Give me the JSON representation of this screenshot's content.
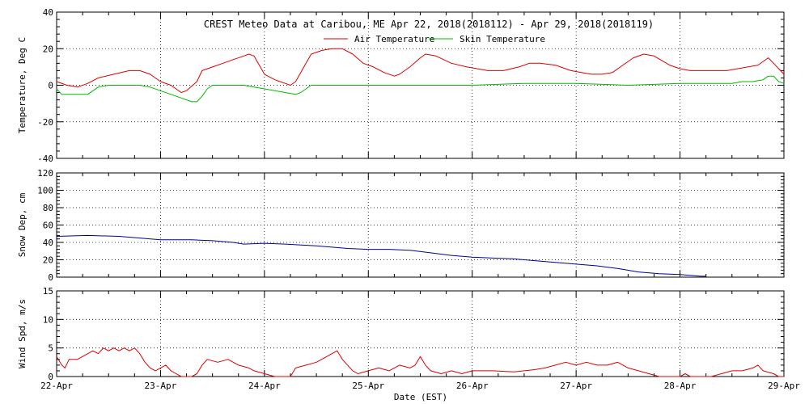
{
  "chart_data": {
    "title": "CREST Meteo Data at Caribou, ME   Apr 22, 2018(2018112) - Apr 29, 2018(2018119)",
    "xlabel": "Date (EST)",
    "x_ticks": [
      "22-Apr",
      "23-Apr",
      "24-Apr",
      "25-Apr",
      "26-Apr",
      "27-Apr",
      "28-Apr",
      "29-Apr"
    ],
    "x_range_days": [
      0,
      7
    ],
    "colors": {
      "red": "#dd0000",
      "green": "#00bb00",
      "blue": "#000099"
    },
    "panels": [
      {
        "type": "line",
        "ylabel": "Temperature, Deg C",
        "ylim": [
          -40,
          40
        ],
        "yticks": [
          -40,
          -20,
          0,
          20,
          40
        ],
        "grid": true,
        "legend_position": "top-center",
        "series": [
          {
            "name": "Air Temperature",
            "color": "red",
            "points": [
              [
                0,
                2
              ],
              [
                0.1,
                0
              ],
              [
                0.2,
                -1
              ],
              [
                0.3,
                1
              ],
              [
                0.4,
                4
              ],
              [
                0.55,
                6
              ],
              [
                0.7,
                8
              ],
              [
                0.8,
                8
              ],
              [
                0.9,
                6
              ],
              [
                1.0,
                2
              ],
              [
                1.1,
                0
              ],
              [
                1.2,
                -4
              ],
              [
                1.25,
                -3
              ],
              [
                1.35,
                2
              ],
              [
                1.4,
                8
              ],
              [
                1.5,
                10
              ],
              [
                1.6,
                12
              ],
              [
                1.7,
                14
              ],
              [
                1.8,
                16
              ],
              [
                1.85,
                17
              ],
              [
                1.9,
                16
              ],
              [
                2.0,
                6
              ],
              [
                2.1,
                3
              ],
              [
                2.15,
                2
              ],
              [
                2.2,
                1
              ],
              [
                2.25,
                0
              ],
              [
                2.3,
                2
              ],
              [
                2.35,
                7
              ],
              [
                2.4,
                12
              ],
              [
                2.45,
                17
              ],
              [
                2.55,
                19
              ],
              [
                2.65,
                20
              ],
              [
                2.75,
                20
              ],
              [
                2.85,
                17
              ],
              [
                2.95,
                12
              ],
              [
                3.05,
                10
              ],
              [
                3.15,
                7
              ],
              [
                3.25,
                5
              ],
              [
                3.3,
                6
              ],
              [
                3.4,
                10
              ],
              [
                3.5,
                15
              ],
              [
                3.55,
                17
              ],
              [
                3.65,
                16
              ],
              [
                3.8,
                12
              ],
              [
                3.95,
                10
              ],
              [
                4.05,
                9
              ],
              [
                4.15,
                8
              ],
              [
                4.3,
                8
              ],
              [
                4.45,
                10
              ],
              [
                4.55,
                12
              ],
              [
                4.65,
                12
              ],
              [
                4.8,
                11
              ],
              [
                4.95,
                8
              ],
              [
                5.05,
                7
              ],
              [
                5.15,
                6
              ],
              [
                5.25,
                6
              ],
              [
                5.35,
                7
              ],
              [
                5.45,
                11
              ],
              [
                5.55,
                15
              ],
              [
                5.65,
                17
              ],
              [
                5.75,
                16
              ],
              [
                5.9,
                11
              ],
              [
                6.0,
                9
              ],
              [
                6.1,
                8
              ],
              [
                6.2,
                8
              ],
              [
                6.35,
                8
              ],
              [
                6.45,
                8
              ],
              [
                6.55,
                9
              ],
              [
                6.65,
                10
              ],
              [
                6.75,
                11
              ],
              [
                6.8,
                13
              ],
              [
                6.85,
                15
              ],
              [
                6.9,
                12
              ],
              [
                6.95,
                9
              ],
              [
                7.0,
                6
              ]
            ]
          },
          {
            "name": "Skin Temperature",
            "color": "green",
            "points": [
              [
                0,
                -2
              ],
              [
                0.05,
                -5
              ],
              [
                0.2,
                -5
              ],
              [
                0.3,
                -5
              ],
              [
                0.35,
                -3
              ],
              [
                0.4,
                -1
              ],
              [
                0.5,
                0
              ],
              [
                0.6,
                0
              ],
              [
                0.7,
                0
              ],
              [
                0.8,
                0
              ],
              [
                0.9,
                -1
              ],
              [
                1.0,
                -3
              ],
              [
                1.1,
                -5
              ],
              [
                1.2,
                -7
              ],
              [
                1.3,
                -9
              ],
              [
                1.35,
                -9
              ],
              [
                1.4,
                -6
              ],
              [
                1.45,
                -2
              ],
              [
                1.5,
                0
              ],
              [
                1.6,
                0
              ],
              [
                1.7,
                0
              ],
              [
                1.8,
                0
              ],
              [
                1.9,
                -1
              ],
              [
                2.0,
                -2
              ],
              [
                2.1,
                -3
              ],
              [
                2.2,
                -4
              ],
              [
                2.3,
                -5
              ],
              [
                2.35,
                -4
              ],
              [
                2.4,
                -2
              ],
              [
                2.45,
                0
              ],
              [
                3.0,
                0
              ],
              [
                4.0,
                0
              ],
              [
                4.5,
                1
              ],
              [
                5.0,
                1
              ],
              [
                5.5,
                0
              ],
              [
                6.0,
                1
              ],
              [
                6.5,
                1
              ],
              [
                6.6,
                2
              ],
              [
                6.7,
                2
              ],
              [
                6.8,
                3
              ],
              [
                6.85,
                5
              ],
              [
                6.9,
                5
              ],
              [
                6.95,
                2
              ],
              [
                7.0,
                1
              ]
            ]
          }
        ]
      },
      {
        "type": "line",
        "ylabel": "Snow Dep, cm",
        "ylim": [
          0,
          120
        ],
        "yticks": [
          0,
          20,
          40,
          60,
          80,
          100,
          120
        ],
        "grid": true,
        "series": [
          {
            "name": "",
            "color": "blue",
            "points": [
              [
                0,
                47
              ],
              [
                0.3,
                48
              ],
              [
                0.6,
                47
              ],
              [
                0.8,
                45
              ],
              [
                1.0,
                43
              ],
              [
                1.3,
                43
              ],
              [
                1.5,
                42
              ],
              [
                1.7,
                40
              ],
              [
                1.8,
                38
              ],
              [
                2.0,
                39
              ],
              [
                2.2,
                38
              ],
              [
                2.5,
                36
              ],
              [
                2.8,
                33
              ],
              [
                3.0,
                32
              ],
              [
                3.2,
                32
              ],
              [
                3.4,
                31
              ],
              [
                3.6,
                28
              ],
              [
                3.8,
                25
              ],
              [
                4.0,
                23
              ],
              [
                4.2,
                22
              ],
              [
                4.4,
                21
              ],
              [
                4.6,
                19
              ],
              [
                4.8,
                17
              ],
              [
                5.0,
                15
              ],
              [
                5.2,
                13
              ],
              [
                5.4,
                10
              ],
              [
                5.6,
                6
              ],
              [
                5.8,
                4
              ],
              [
                6.0,
                3
              ],
              [
                6.2,
                1
              ],
              [
                6.25,
                1
              ]
            ]
          }
        ]
      },
      {
        "type": "line",
        "ylabel": "Wind Spd, m/s",
        "ylim": [
          0,
          15
        ],
        "yticks": [
          0,
          5,
          10,
          15
        ],
        "grid": true,
        "series": [
          {
            "name": "",
            "color": "red",
            "points": [
              [
                0,
                3.5
              ],
              [
                0.05,
                2
              ],
              [
                0.08,
                1.5
              ],
              [
                0.12,
                3
              ],
              [
                0.2,
                3
              ],
              [
                0.3,
                4
              ],
              [
                0.35,
                4.5
              ],
              [
                0.4,
                4
              ],
              [
                0.45,
                5
              ],
              [
                0.5,
                4.5
              ],
              [
                0.55,
                5
              ],
              [
                0.6,
                4.5
              ],
              [
                0.65,
                5
              ],
              [
                0.7,
                4.5
              ],
              [
                0.75,
                5
              ],
              [
                0.8,
                4
              ],
              [
                0.85,
                2.5
              ],
              [
                0.9,
                1.5
              ],
              [
                0.95,
                1
              ],
              [
                1.0,
                1.5
              ],
              [
                1.05,
                2
              ],
              [
                1.1,
                1
              ],
              [
                1.15,
                0.5
              ],
              [
                1.2,
                0
              ],
              [
                1.3,
                0
              ],
              [
                1.35,
                0.5
              ],
              [
                1.4,
                2
              ],
              [
                1.45,
                3
              ],
              [
                1.55,
                2.5
              ],
              [
                1.65,
                3
              ],
              [
                1.75,
                2
              ],
              [
                1.85,
                1.5
              ],
              [
                1.9,
                1
              ],
              [
                2.0,
                0.5
              ],
              [
                2.1,
                0
              ],
              [
                2.25,
                0
              ],
              [
                2.3,
                1.5
              ],
              [
                2.4,
                2
              ],
              [
                2.5,
                2.5
              ],
              [
                2.6,
                3.5
              ],
              [
                2.65,
                4
              ],
              [
                2.7,
                4.5
              ],
              [
                2.75,
                3
              ],
              [
                2.8,
                2
              ],
              [
                2.85,
                1
              ],
              [
                2.9,
                0.5
              ],
              [
                3.0,
                1
              ],
              [
                3.1,
                1.5
              ],
              [
                3.2,
                1
              ],
              [
                3.3,
                2
              ],
              [
                3.4,
                1.5
              ],
              [
                3.45,
                2
              ],
              [
                3.5,
                3.5
              ],
              [
                3.55,
                2
              ],
              [
                3.6,
                1
              ],
              [
                3.7,
                0.5
              ],
              [
                3.8,
                1
              ],
              [
                3.9,
                0.5
              ],
              [
                4.0,
                1
              ],
              [
                4.2,
                1
              ],
              [
                4.4,
                0.8
              ],
              [
                4.6,
                1.2
              ],
              [
                4.7,
                1.5
              ],
              [
                4.8,
                2
              ],
              [
                4.9,
                2.5
              ],
              [
                5.0,
                2
              ],
              [
                5.1,
                2.5
              ],
              [
                5.2,
                2
              ],
              [
                5.3,
                2
              ],
              [
                5.4,
                2.5
              ],
              [
                5.5,
                1.5
              ],
              [
                5.6,
                1
              ],
              [
                5.7,
                0.5
              ],
              [
                5.8,
                0
              ],
              [
                6.0,
                0
              ],
              [
                6.05,
                0.5
              ],
              [
                6.1,
                0
              ],
              [
                6.3,
                0
              ],
              [
                6.4,
                0.5
              ],
              [
                6.5,
                1
              ],
              [
                6.6,
                1
              ],
              [
                6.7,
                1.5
              ],
              [
                6.75,
                2
              ],
              [
                6.8,
                1
              ],
              [
                6.9,
                0.5
              ],
              [
                6.95,
                0
              ],
              [
                7.0,
                0
              ]
            ]
          }
        ]
      }
    ]
  }
}
